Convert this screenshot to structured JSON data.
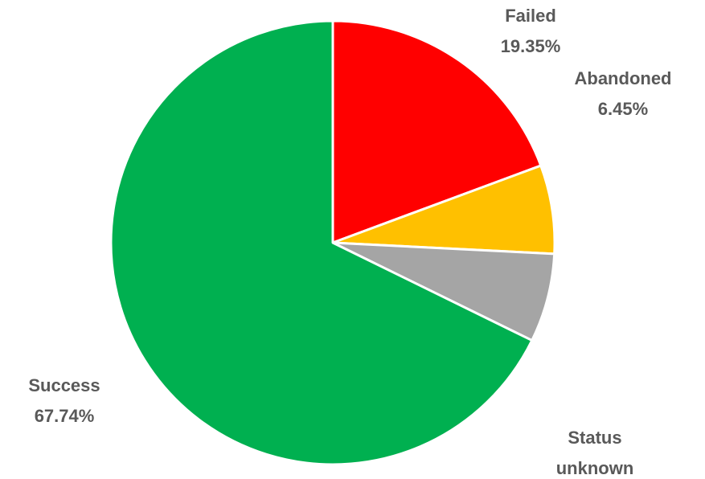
{
  "chart_data": {
    "type": "pie",
    "categories": [
      "Failed",
      "Abandoned",
      "Status unknown",
      "Success"
    ],
    "values": [
      19.35,
      6.45,
      6.46,
      67.74
    ],
    "value_labels": [
      "19.35%",
      "6.45%",
      null,
      "67.74%"
    ],
    "colors": [
      "#ff0000",
      "#ffc000",
      "#a5a5a5",
      "#00b050"
    ]
  }
}
